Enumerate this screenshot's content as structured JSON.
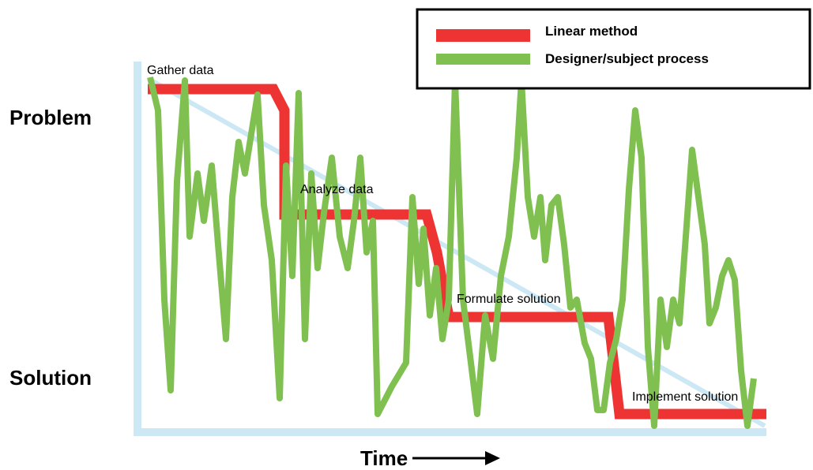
{
  "axes": {
    "y_top_label": "Problem",
    "y_bottom_label": "Solution",
    "x_label": "Time"
  },
  "legend": {
    "items": [
      {
        "label": "Linear method",
        "color": "#ee3333"
      },
      {
        "label": "Designer/subject process",
        "color": "#80c050"
      }
    ]
  },
  "stages": [
    {
      "label": "Gather data"
    },
    {
      "label": "Analyze data"
    },
    {
      "label": "Formulate solution"
    },
    {
      "label": "Implement solution"
    }
  ],
  "colors": {
    "axis": "#cce8f4",
    "diagonal": "#cce8f4",
    "linear": "#ee3333",
    "process": "#80c050",
    "legend_border": "#000000",
    "text": "#000000"
  },
  "icons": {
    "time_arrow": "right-arrow-icon"
  }
}
